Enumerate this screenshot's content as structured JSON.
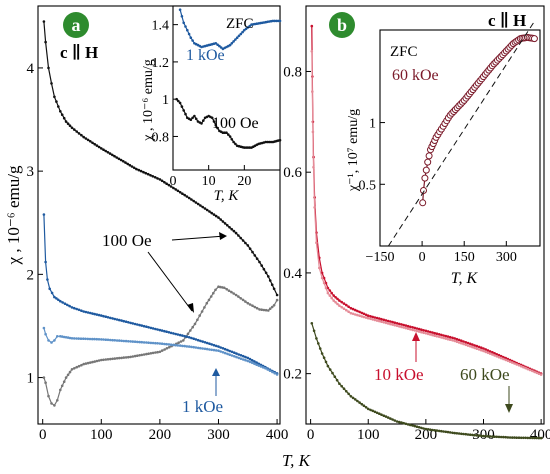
{
  "figure": {
    "xlabel_text": "T, K",
    "colors": {
      "black": "#111111",
      "blue": "#1f5aa0",
      "lightblue": "#5f92c8",
      "gray": "#777777",
      "red": "#c8102e",
      "pink": "#e58c98",
      "olive": "#3e4a1e",
      "darkred": "#7b1a2a"
    }
  },
  "chart_data": [
    {
      "id": "a",
      "type": "line",
      "panel_label": "a",
      "orientation_label": "c ∥ H",
      "xlabel": "T, K",
      "ylabel": "χ , 10⁻⁶ emu/g",
      "xlim": [
        -8,
        405
      ],
      "ylim": [
        0.55,
        4.6
      ],
      "xticks": [
        0,
        100,
        200,
        300,
        400
      ],
      "yticks": [
        1,
        2,
        3,
        4
      ],
      "annotations": {
        "field_100": "100 Oe",
        "field_1k": "1 kOe"
      },
      "series": [
        {
          "key": "fc100",
          "color": "black",
          "x": [
            2,
            5,
            10,
            15,
            20,
            30,
            40,
            50,
            70,
            100,
            130,
            160,
            200,
            250,
            300,
            330,
            350,
            370,
            385,
            395,
            400
          ],
          "y": [
            4.45,
            4.25,
            4.0,
            3.85,
            3.72,
            3.58,
            3.48,
            3.42,
            3.33,
            3.22,
            3.12,
            3.02,
            2.92,
            2.74,
            2.55,
            2.4,
            2.28,
            2.12,
            1.98,
            1.86,
            1.8
          ]
        },
        {
          "key": "zfc100",
          "color": "gray",
          "x": [
            2,
            5,
            10,
            15,
            20,
            25,
            30,
            40,
            50,
            70,
            100,
            150,
            200,
            240,
            260,
            280,
            295,
            300,
            310,
            330,
            350,
            370,
            385,
            395,
            400
          ],
          "y": [
            1.0,
            0.95,
            0.82,
            0.75,
            0.73,
            0.78,
            0.88,
            1.0,
            1.08,
            1.13,
            1.17,
            1.2,
            1.25,
            1.36,
            1.52,
            1.72,
            1.85,
            1.88,
            1.87,
            1.8,
            1.72,
            1.66,
            1.65,
            1.7,
            1.75
          ]
        },
        {
          "key": "fc1k",
          "color": "blue",
          "x": [
            2,
            5,
            8,
            12,
            20,
            30,
            50,
            70,
            100,
            150,
            200,
            250,
            300,
            350,
            380,
            400
          ],
          "y": [
            2.58,
            2.12,
            1.95,
            1.86,
            1.78,
            1.74,
            1.68,
            1.64,
            1.6,
            1.53,
            1.46,
            1.39,
            1.3,
            1.19,
            1.1,
            1.04
          ]
        },
        {
          "key": "zfc1k",
          "color": "lightblue",
          "x": [
            2,
            5,
            10,
            15,
            20,
            25,
            30,
            40,
            50,
            100,
            150,
            200,
            250,
            300,
            350,
            380,
            400
          ],
          "y": [
            1.48,
            1.42,
            1.36,
            1.34,
            1.36,
            1.4,
            1.4,
            1.39,
            1.38,
            1.37,
            1.35,
            1.33,
            1.3,
            1.26,
            1.16,
            1.09,
            1.03
          ]
        }
      ],
      "inset": {
        "label": "ZFC",
        "xlabel": "T, K",
        "ylabel": "χ , 10⁻⁶ emu/g",
        "xlim": [
          0,
          30
        ],
        "ylim": [
          0.62,
          1.5
        ],
        "xticks": [
          0,
          10,
          20
        ],
        "yticks": [
          0.8,
          1,
          1.2,
          1.4
        ],
        "annotations": {
          "field_1k": "1 kOe",
          "field_100": "100 Oe"
        },
        "series": [
          {
            "key": "inset_1k",
            "color": "blue",
            "x": [
              2,
              3,
              4,
              5,
              6,
              8,
              10,
              12,
              14,
              16,
              18,
              20,
              22,
              25,
              28,
              30
            ],
            "y": [
              1.48,
              1.41,
              1.37,
              1.33,
              1.3,
              1.28,
              1.29,
              1.3,
              1.27,
              1.29,
              1.33,
              1.37,
              1.4,
              1.41,
              1.42,
              1.42
            ]
          },
          {
            "key": "inset_100",
            "color": "black",
            "x": [
              1,
              2,
              3,
              4,
              5,
              6,
              7,
              8,
              9,
              10,
              11,
              12,
              13,
              14,
              15,
              16,
              17,
              18,
              20,
              22,
              24,
              26,
              28,
              30
            ],
            "y": [
              1.0,
              0.98,
              0.94,
              0.9,
              0.89,
              0.91,
              0.88,
              0.87,
              0.9,
              0.91,
              0.9,
              0.86,
              0.83,
              0.82,
              0.82,
              0.8,
              0.77,
              0.75,
              0.74,
              0.74,
              0.76,
              0.77,
              0.77,
              0.78
            ]
          }
        ]
      }
    },
    {
      "id": "b",
      "type": "line",
      "panel_label": "b",
      "orientation_label": "c ∥ H",
      "xlabel": "T, K",
      "ylabel": "",
      "xlim": [
        -8,
        405
      ],
      "ylim": [
        0.1,
        0.93
      ],
      "xticks": [
        0,
        100,
        200,
        300,
        400
      ],
      "yticks": [
        0.2,
        0.4,
        0.6,
        0.8
      ],
      "annotations": {
        "field_10k": "10 kOe",
        "field_60k": "60 kOe"
      },
      "series": [
        {
          "key": "fc10k",
          "color": "red",
          "x": [
            2,
            3,
            4,
            5,
            7,
            10,
            15,
            20,
            30,
            40,
            50,
            70,
            100,
            150,
            200,
            250,
            300,
            350,
            400
          ],
          "y": [
            0.89,
            0.79,
            0.7,
            0.63,
            0.55,
            0.48,
            0.43,
            0.4,
            0.37,
            0.355,
            0.345,
            0.33,
            0.315,
            0.3,
            0.285,
            0.27,
            0.25,
            0.225,
            0.2
          ]
        },
        {
          "key": "zfc10k",
          "color": "pink",
          "x": [
            2,
            3,
            4,
            5,
            7,
            10,
            15,
            20,
            30,
            40,
            50,
            70,
            100,
            150,
            200,
            250,
            300,
            350,
            400
          ],
          "y": [
            0.84,
            0.76,
            0.68,
            0.61,
            0.53,
            0.46,
            0.41,
            0.39,
            0.36,
            0.345,
            0.335,
            0.32,
            0.31,
            0.295,
            0.28,
            0.265,
            0.245,
            0.222,
            0.198
          ]
        },
        {
          "key": "fc60k",
          "color": "olive",
          "x": [
            2,
            10,
            20,
            30,
            50,
            70,
            100,
            150,
            200,
            250,
            300,
            350,
            400
          ],
          "y": [
            0.3,
            0.27,
            0.24,
            0.215,
            0.18,
            0.155,
            0.13,
            0.105,
            0.09,
            0.082,
            0.076,
            0.073,
            0.072
          ]
        }
      ],
      "inset": {
        "label": "ZFC",
        "field_label": "60 kOe",
        "xlabel": "T, K",
        "ylabel": "χ⁻¹, 10⁷ emu/g",
        "xlim": [
          -150,
          420
        ],
        "ylim": [
          0,
          1.75
        ],
        "xticks": [
          -150,
          0,
          150,
          300
        ],
        "yticks": [
          0.5,
          1
        ],
        "series": [
          {
            "key": "inv",
            "color": "darkred",
            "x": [
              2,
              5,
              10,
              20,
              30,
              40,
              50,
              75,
              100,
              150,
              200,
              250,
              300,
              325,
              350,
              375,
              400
            ],
            "y": [
              0.35,
              0.45,
              0.55,
              0.68,
              0.78,
              0.83,
              0.88,
              0.97,
              1.06,
              1.18,
              1.32,
              1.46,
              1.58,
              1.64,
              1.68,
              1.69,
              1.68
            ]
          },
          {
            "key": "fit",
            "color": "black",
            "dashed": true,
            "x": [
              -120,
              400
            ],
            "y": [
              0,
              1.82
            ]
          }
        ]
      }
    }
  ]
}
